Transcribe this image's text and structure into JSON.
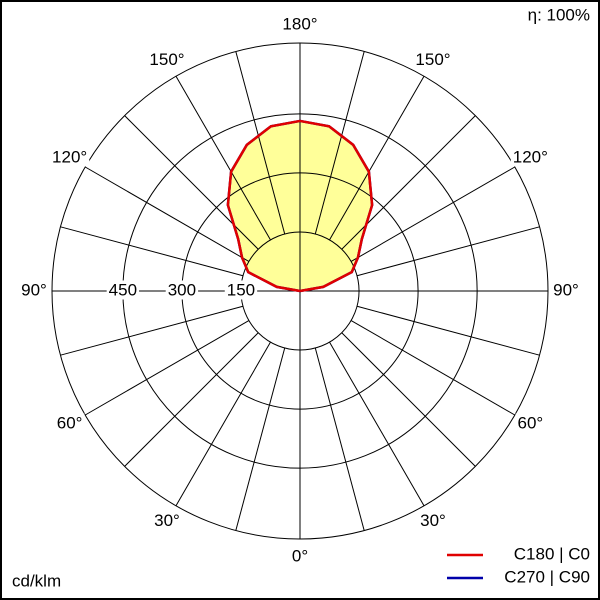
{
  "chart_data": {
    "type": "polar",
    "efficiency": "η: 100%",
    "unit": "cd/klm",
    "rlim": [
      0,
      630
    ],
    "rticks": [
      150,
      300,
      450
    ],
    "angle_ticks_right": [
      {
        "value": 0,
        "label": "0°"
      },
      {
        "value": 30,
        "label": "30°"
      },
      {
        "value": 60,
        "label": "60°"
      },
      {
        "value": 90,
        "label": "90°"
      },
      {
        "value": 120,
        "label": "120°"
      },
      {
        "value": 150,
        "label": "150°"
      },
      {
        "value": 180,
        "label": "180°"
      }
    ],
    "angle_ticks_left": [
      {
        "value": 30,
        "label": "30°"
      },
      {
        "value": 60,
        "label": "60°"
      },
      {
        "value": 90,
        "label": "90°"
      },
      {
        "value": 120,
        "label": "120°"
      },
      {
        "value": 150,
        "label": "150°"
      }
    ],
    "angles": [
      90,
      100,
      110,
      120,
      130,
      140,
      150,
      160,
      170,
      180
    ],
    "series": [
      {
        "name": "C270 | C90",
        "color": "#0000aa",
        "fill": "#ffff99",
        "values": [
          0,
          60,
          140,
          170,
          205,
          285,
          350,
          395,
          425,
          432
        ]
      },
      {
        "name": "C180 | C0",
        "color": "#e00000",
        "fill": "#ffff99",
        "values": [
          0,
          60,
          140,
          170,
          205,
          285,
          350,
          395,
          425,
          432
        ]
      }
    ]
  }
}
